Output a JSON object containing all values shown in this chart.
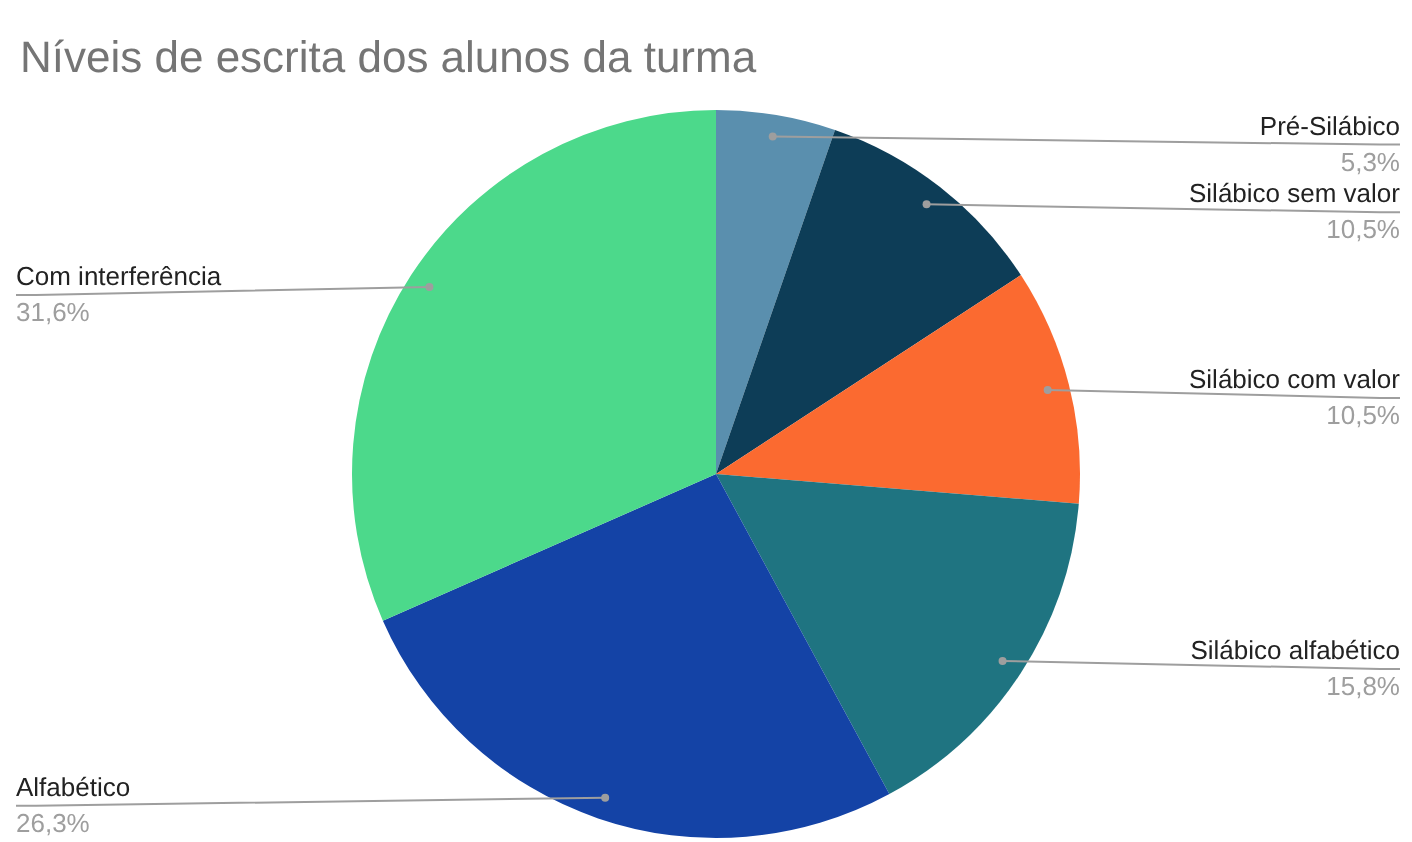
{
  "chart_data": {
    "type": "pie",
    "title": "Níveis de escrita dos alunos da turma",
    "categories": [
      "Pré-Silábico",
      "Silábico sem valor",
      "Silábico com valor",
      "Silábico alfabético",
      "Alfabético",
      "Com interferência"
    ],
    "values": [
      5.3,
      10.5,
      10.5,
      15.8,
      26.3,
      31.6
    ],
    "colors": [
      "#5a8fae",
      "#0d3d57",
      "#fb6a30",
      "#1f7481",
      "#1443a6",
      "#4cd98b"
    ],
    "value_labels": [
      "5,3%",
      "10,5%",
      "10,5%",
      "15,8%",
      "26,3%",
      "31,6%"
    ],
    "legend": false
  }
}
